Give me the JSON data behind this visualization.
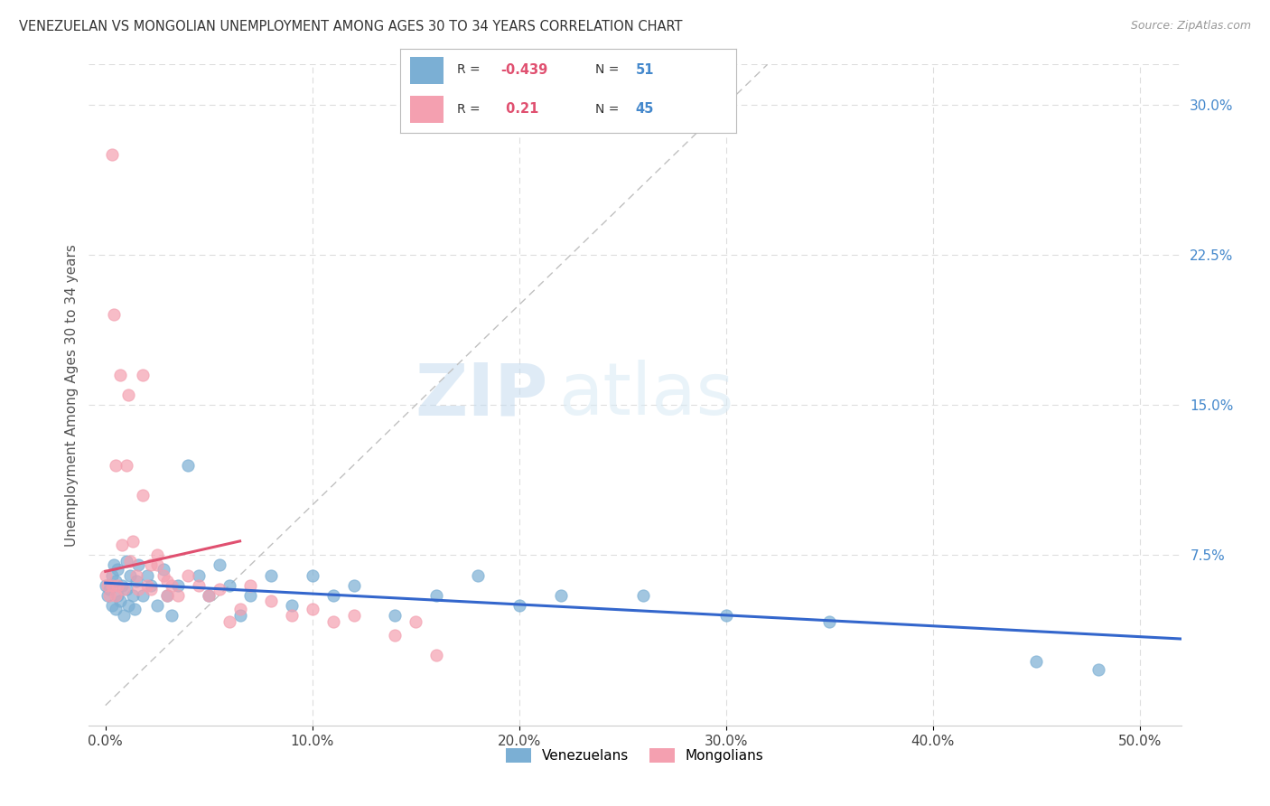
{
  "title": "VENEZUELAN VS MONGOLIAN UNEMPLOYMENT AMONG AGES 30 TO 34 YEARS CORRELATION CHART",
  "source": "Source: ZipAtlas.com",
  "ylabel": "Unemployment Among Ages 30 to 34 years",
  "x_ticks": [
    0.0,
    0.1,
    0.2,
    0.3,
    0.4,
    0.5
  ],
  "x_tick_labels": [
    "0.0%",
    "10.0%",
    "20.0%",
    "30.0%",
    "40.0%",
    "50.0%"
  ],
  "y_ticks_right": [
    0.0,
    0.075,
    0.15,
    0.225,
    0.3
  ],
  "y_tick_labels_right": [
    "",
    "7.5%",
    "15.0%",
    "22.5%",
    "30.0%"
  ],
  "xlim": [
    -0.008,
    0.52
  ],
  "ylim": [
    -0.01,
    0.32
  ],
  "venezuelan_color": "#7BAFD4",
  "mongolian_color": "#F4A0B0",
  "venezuelan_line_color": "#3366CC",
  "mongolian_line_color": "#E05070",
  "venezuelan_R": -0.439,
  "venezuelan_N": 51,
  "mongolian_R": 0.21,
  "mongolian_N": 45,
  "legend_label_1": "Venezuelans",
  "legend_label_2": "Mongolians",
  "watermark_zip": "ZIP",
  "watermark_atlas": "atlas",
  "venezuelan_scatter_x": [
    0.0,
    0.001,
    0.002,
    0.003,
    0.003,
    0.004,
    0.005,
    0.005,
    0.006,
    0.006,
    0.007,
    0.008,
    0.009,
    0.01,
    0.01,
    0.011,
    0.012,
    0.013,
    0.014,
    0.015,
    0.016,
    0.018,
    0.02,
    0.022,
    0.025,
    0.028,
    0.03,
    0.032,
    0.035,
    0.04,
    0.045,
    0.05,
    0.055,
    0.06,
    0.065,
    0.07,
    0.08,
    0.09,
    0.1,
    0.11,
    0.12,
    0.14,
    0.16,
    0.18,
    0.2,
    0.22,
    0.26,
    0.3,
    0.35,
    0.45,
    0.48
  ],
  "venezuelan_scatter_y": [
    0.06,
    0.055,
    0.058,
    0.065,
    0.05,
    0.07,
    0.062,
    0.048,
    0.055,
    0.068,
    0.052,
    0.06,
    0.045,
    0.058,
    0.072,
    0.05,
    0.065,
    0.055,
    0.048,
    0.062,
    0.07,
    0.055,
    0.065,
    0.06,
    0.05,
    0.068,
    0.055,
    0.045,
    0.06,
    0.12,
    0.065,
    0.055,
    0.07,
    0.06,
    0.045,
    0.055,
    0.065,
    0.05,
    0.065,
    0.055,
    0.06,
    0.045,
    0.055,
    0.065,
    0.05,
    0.055,
    0.055,
    0.045,
    0.042,
    0.022,
    0.018
  ],
  "mongolian_scatter_x": [
    0.0,
    0.001,
    0.002,
    0.003,
    0.003,
    0.004,
    0.005,
    0.005,
    0.006,
    0.007,
    0.008,
    0.009,
    0.01,
    0.011,
    0.012,
    0.013,
    0.015,
    0.016,
    0.018,
    0.02,
    0.022,
    0.025,
    0.028,
    0.03,
    0.032,
    0.035,
    0.04,
    0.045,
    0.05,
    0.055,
    0.06,
    0.065,
    0.07,
    0.08,
    0.09,
    0.1,
    0.11,
    0.12,
    0.14,
    0.15,
    0.16,
    0.018,
    0.022,
    0.025,
    0.03
  ],
  "mongolian_scatter_y": [
    0.065,
    0.06,
    0.055,
    0.275,
    0.06,
    0.195,
    0.055,
    0.12,
    0.06,
    0.165,
    0.08,
    0.058,
    0.12,
    0.155,
    0.072,
    0.082,
    0.065,
    0.058,
    0.105,
    0.06,
    0.058,
    0.07,
    0.065,
    0.055,
    0.06,
    0.055,
    0.065,
    0.06,
    0.055,
    0.058,
    0.042,
    0.048,
    0.06,
    0.052,
    0.045,
    0.048,
    0.042,
    0.045,
    0.035,
    0.042,
    0.025,
    0.165,
    0.07,
    0.075,
    0.062
  ],
  "diag_line_x": [
    0.0,
    0.32
  ],
  "diag_line_y": [
    0.0,
    0.32
  ]
}
